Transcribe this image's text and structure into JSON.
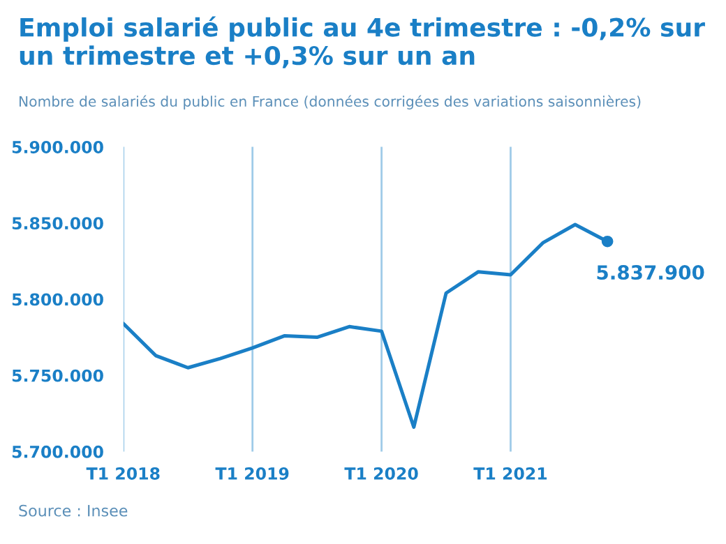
{
  "chart_data": {
    "type": "line",
    "title": "Emploi salarié public au 4e trimestre : -0,2% sur un trimestre et +0,3% sur un an",
    "subtitle": "Nombre de salariés du public en France (données corrigées des variations saisonnières)",
    "categories": [
      "T1 2018",
      null,
      null,
      null,
      "T1 2019",
      null,
      null,
      null,
      "T1 2020",
      null,
      null,
      null,
      "T1 2021",
      null,
      null,
      null
    ],
    "series": [
      {
        "color": "#1a7fc6",
        "values": [
          5784000,
          5763000,
          5755000,
          5761000,
          5768000,
          5776000,
          5775000,
          5782000,
          5779000,
          5716000,
          5804000,
          5818000,
          5816000,
          5837000,
          5849000,
          5837900
        ],
        "value_labels": [
          null,
          null,
          null,
          null,
          null,
          null,
          null,
          null,
          null,
          null,
          null,
          null,
          null,
          null,
          null,
          "5.837.900"
        ]
      }
    ],
    "ylim": [
      5700000,
      5900000
    ],
    "yticks": [
      {
        "value": 5700000,
        "label": "5.700.000"
      },
      {
        "value": 5750000,
        "label": "5.750.000"
      },
      {
        "value": 5800000,
        "label": "5.800.000"
      },
      {
        "value": 5850000,
        "label": "5.850.000"
      },
      {
        "value": 5900000,
        "label": "5.900.000"
      }
    ],
    "grid": "x",
    "annotations": [
      "Source : Insee"
    ]
  }
}
